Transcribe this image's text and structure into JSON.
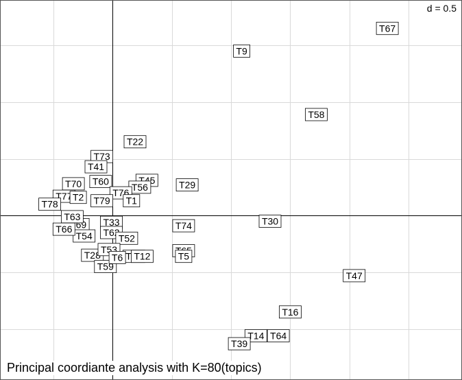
{
  "chart_data": {
    "type": "scatter",
    "title": "Principal coordiante analysis with K=80(topics)",
    "grid_label": "d = 0.5",
    "grid": true,
    "xlim": [
      -0.95,
      2.95
    ],
    "ylim": [
      -1.45,
      1.9
    ],
    "grid_step": 0.5,
    "points": [
      {
        "label": "T67",
        "x": 2.32,
        "y": 1.65
      },
      {
        "label": "T9",
        "x": 1.09,
        "y": 1.45
      },
      {
        "label": "T58",
        "x": 1.72,
        "y": 0.89
      },
      {
        "label": "T22",
        "x": 0.19,
        "y": 0.65
      },
      {
        "label": "T73",
        "x": -0.09,
        "y": 0.52
      },
      {
        "label": "T41",
        "x": -0.14,
        "y": 0.43
      },
      {
        "label": "T45",
        "x": 0.29,
        "y": 0.31
      },
      {
        "label": "T60",
        "x": -0.1,
        "y": 0.3
      },
      {
        "label": "T29",
        "x": 0.63,
        "y": 0.27
      },
      {
        "label": "T70",
        "x": -0.33,
        "y": 0.28
      },
      {
        "label": "T56",
        "x": 0.23,
        "y": 0.25
      },
      {
        "label": "T76",
        "x": 0.07,
        "y": 0.2
      },
      {
        "label": "T77",
        "x": -0.41,
        "y": 0.17
      },
      {
        "label": "T79",
        "x": -0.09,
        "y": 0.13
      },
      {
        "label": "T78",
        "x": -0.53,
        "y": 0.1
      },
      {
        "label": "T33",
        "x": -0.01,
        "y": -0.06
      },
      {
        "label": "T69",
        "x": -0.29,
        "y": -0.08
      },
      {
        "label": "T74",
        "x": 0.6,
        "y": -0.09
      },
      {
        "label": "T30",
        "x": 1.33,
        "y": -0.05
      },
      {
        "label": "T62",
        "x": -0.01,
        "y": -0.15
      },
      {
        "label": "T54",
        "x": -0.24,
        "y": -0.18
      },
      {
        "label": "T52",
        "x": 0.12,
        "y": -0.2
      },
      {
        "label": "T65",
        "x": 0.6,
        "y": -0.31
      },
      {
        "label": "T28",
        "x": -0.17,
        "y": -0.35
      },
      {
        "label": "T75",
        "x": 0.18,
        "y": -0.36
      },
      {
        "label": "T59",
        "x": -0.06,
        "y": -0.45
      },
      {
        "label": "T47",
        "x": 2.04,
        "y": -0.53
      },
      {
        "label": "T16",
        "x": 1.5,
        "y": -0.85
      },
      {
        "label": "T64",
        "x": 1.4,
        "y": -1.06
      },
      {
        "label": "T14",
        "x": 1.21,
        "y": -1.06
      },
      {
        "label": "T39",
        "x": 1.07,
        "y": -1.13
      },
      {
        "label": "T63",
        "x": -0.34,
        "y": -0.01
      },
      {
        "label": "T66",
        "x": -0.41,
        "y": -0.12
      },
      {
        "label": "T1",
        "x": 0.16,
        "y": 0.13
      },
      {
        "label": "T2",
        "x": -0.29,
        "y": 0.16
      },
      {
        "label": "T53",
        "x": -0.03,
        "y": -0.3
      },
      {
        "label": "T6",
        "x": 0.04,
        "y": -0.37
      },
      {
        "label": "T5",
        "x": 0.6,
        "y": -0.36
      },
      {
        "label": "T12",
        "x": 0.25,
        "y": -0.36
      }
    ]
  }
}
